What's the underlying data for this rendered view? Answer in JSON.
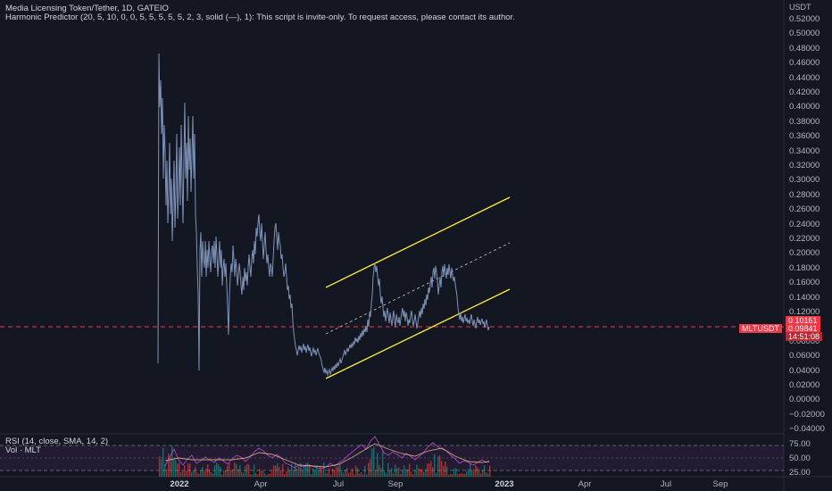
{
  "header": {
    "title": "Media Licensing Token/Tether, 1D, GATEIO",
    "indicator": "Harmonic Predictor (20, 5, 10, 0, 0, 5, 5, 5, 5, 5, 2, 3, solid (—), 1): This script is invite-only. To request access, please contact its author."
  },
  "currency_label": "USDT",
  "price_axis": [
    "0.52000",
    "0.50000",
    "0.48000",
    "0.46000",
    "0.44000",
    "0.42000",
    "0.40000",
    "0.38000",
    "0.36000",
    "0.34000",
    "0.32000",
    "0.30000",
    "0.28000",
    "0.26000",
    "0.24000",
    "0.22000",
    "0.20000",
    "0.18000",
    "0.16000",
    "0.14000",
    "0.12000",
    "0.08000",
    "0.06000",
    "0.04000",
    "0.02000",
    "0.00000",
    "−0.02000",
    "−0.04000"
  ],
  "price_levels": [
    0.52,
    0.5,
    0.48,
    0.46,
    0.44,
    0.42,
    0.4,
    0.38,
    0.36,
    0.34,
    0.32,
    0.3,
    0.28,
    0.26,
    0.24,
    0.22,
    0.2,
    0.18,
    0.16,
    0.14,
    0.12,
    0.08,
    0.06,
    0.04,
    0.02,
    0.0,
    -0.02,
    -0.04
  ],
  "price_badges": {
    "upper": "0.10161",
    "current": "0.09841",
    "countdown": "14:51:08",
    "symbol": "MLTUSDT"
  },
  "rsi_pane": {
    "label_rsi": "RSI (14, close, SMA, 14, 2)",
    "label_vol": "Vol · MLT",
    "axis": [
      "75.00",
      "50.00",
      "25.00"
    ]
  },
  "time_axis": [
    {
      "label": "2022",
      "year": true
    },
    {
      "label": "Apr",
      "year": false
    },
    {
      "label": "Jul",
      "year": false
    },
    {
      "label": "Sep",
      "year": false
    },
    {
      "label": "2023",
      "year": true
    },
    {
      "label": "Apr",
      "year": false
    },
    {
      "label": "Jul",
      "year": false
    },
    {
      "label": "Sep",
      "year": false
    }
  ],
  "colors": {
    "background": "#131722",
    "candle_line": "#7f93b8",
    "channel": "#ffeb3b",
    "price_line": "#f23645",
    "rsi": "#ab47bc"
  }
}
